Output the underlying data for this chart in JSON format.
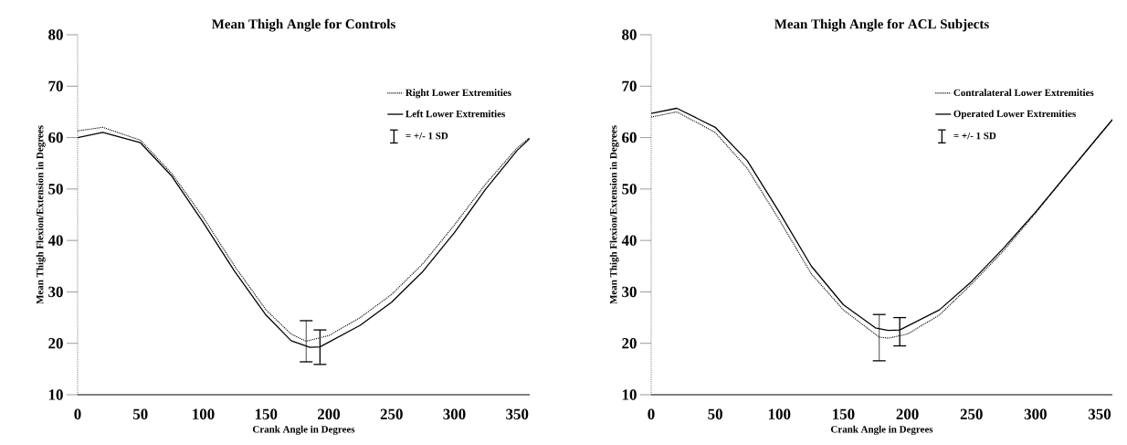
{
  "chart_data": [
    {
      "type": "line",
      "title": "Mean Thigh Angle for Controls",
      "xlabel": "Crank Angle in Degrees",
      "ylabel": "Mean Thigh Flexion/Extension in Degrees",
      "xlim": [
        0,
        360
      ],
      "ylim": [
        10,
        80
      ],
      "xticks": [
        0,
        50,
        100,
        150,
        200,
        250,
        300,
        350
      ],
      "yticks": [
        10,
        20,
        30,
        40,
        50,
        60,
        70,
        80
      ],
      "grid": false,
      "legend": "top right",
      "marker": "none",
      "annotations": [
        "= +/- 1 SD"
      ],
      "series": [
        {
          "name": "Right Lower Extremities",
          "color": "#000000",
          "line_style": "dotted",
          "x": [
            0,
            20,
            50,
            75,
            100,
            125,
            150,
            170,
            182,
            200,
            225,
            250,
            275,
            300,
            325,
            350,
            360
          ],
          "values": [
            61.3,
            62,
            59.5,
            53,
            44.5,
            35,
            26.5,
            21.8,
            20.4,
            21.5,
            25,
            29.5,
            35.5,
            43,
            51,
            58,
            60
          ],
          "errors": [
            null,
            null,
            null,
            null,
            null,
            null,
            null,
            null,
            [
              16.4,
              24.4
            ],
            null,
            null,
            null,
            null,
            null,
            null,
            null,
            null
          ]
        },
        {
          "name": "Left Lower Extremities",
          "color": "#000000",
          "line_style": "solid",
          "x": [
            0,
            20,
            50,
            75,
            100,
            125,
            150,
            170,
            185,
            193,
            225,
            250,
            275,
            300,
            325,
            350,
            360
          ],
          "values": [
            60,
            61,
            59,
            52.5,
            43.5,
            34,
            25.5,
            20.5,
            19.2,
            19.3,
            23.5,
            28,
            34,
            41.5,
            50,
            57.5,
            59.8
          ],
          "errors": [
            null,
            null,
            null,
            null,
            null,
            null,
            null,
            null,
            null,
            [
              15.9,
              22.6
            ],
            null,
            null,
            null,
            null,
            null,
            null,
            null
          ]
        }
      ]
    },
    {
      "type": "line",
      "title": "Mean Thigh Angle for ACL Subjects",
      "xlabel": "Crank Angle in Degrees",
      "ylabel": "Mean Thigh Flexion/Extension in Degrees",
      "xlim": [
        0,
        360
      ],
      "ylim": [
        10,
        80
      ],
      "xticks": [
        0,
        50,
        100,
        150,
        200,
        250,
        300,
        350
      ],
      "yticks": [
        10,
        20,
        30,
        40,
        50,
        60,
        70,
        80
      ],
      "grid": false,
      "legend": "top right",
      "marker": "none",
      "annotations": [
        "= +/- 1 SD"
      ],
      "series": [
        {
          "name": "Contralateral Lower  Extremities",
          "color": "#000000",
          "line_style": "dotted",
          "x": [
            0,
            20,
            50,
            75,
            100,
            125,
            150,
            178,
            185,
            200,
            225,
            250,
            275,
            300,
            325,
            350,
            360
          ],
          "values": [
            64,
            65,
            61,
            54,
            44,
            33.5,
            26.5,
            21.2,
            21,
            21.8,
            25.5,
            31.5,
            38,
            45.3,
            53,
            60.5,
            63.5
          ],
          "errors": [
            null,
            null,
            null,
            null,
            null,
            null,
            null,
            [
              16.6,
              25.6
            ],
            null,
            null,
            null,
            null,
            null,
            null,
            null,
            null,
            null
          ]
        },
        {
          "name": "Operated Lower  Extremities",
          "color": "#000000",
          "line_style": "solid",
          "x": [
            0,
            20,
            50,
            75,
            100,
            125,
            150,
            175,
            185,
            194,
            225,
            250,
            275,
            300,
            325,
            350,
            360
          ],
          "values": [
            64.7,
            65.7,
            62,
            55.5,
            45.5,
            35,
            27.5,
            23,
            22.5,
            22.6,
            26.5,
            32,
            38.5,
            45.5,
            53,
            60.5,
            63.5
          ],
          "errors": [
            null,
            null,
            null,
            null,
            null,
            null,
            null,
            null,
            null,
            [
              19.5,
              25.0
            ],
            null,
            null,
            null,
            null,
            null,
            null,
            null
          ]
        }
      ]
    }
  ]
}
